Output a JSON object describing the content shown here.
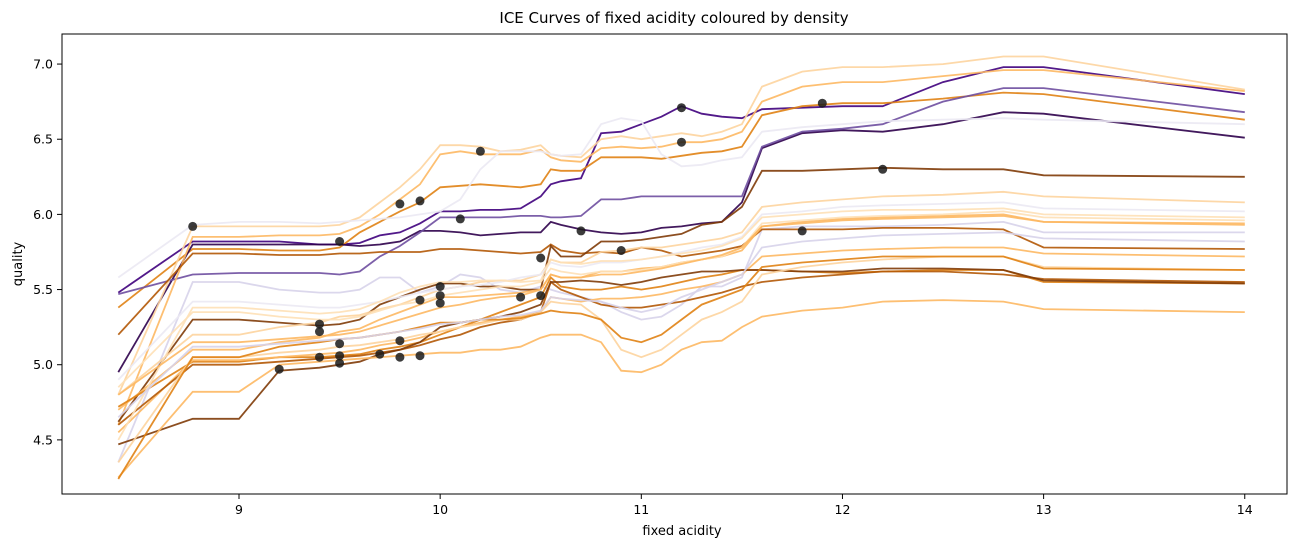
{
  "chart_data": {
    "type": "line",
    "title": "ICE Curves of fixed acidity coloured by density",
    "xlabel": "fixed acidity",
    "ylabel": "quality",
    "xlim": [
      8.12,
      14.21
    ],
    "ylim": [
      4.14,
      7.2
    ],
    "xticks": [
      "9",
      "10",
      "11",
      "12",
      "13",
      "14"
    ],
    "yticks": [
      "4.5",
      "5.0",
      "5.5",
      "6.0",
      "6.5",
      "7.0"
    ],
    "grid": false,
    "legend": "none",
    "x": [
      8.4,
      8.77,
      9.0,
      9.2,
      9.4,
      9.5,
      9.6,
      9.7,
      9.8,
      9.9,
      10.0,
      10.1,
      10.2,
      10.3,
      10.4,
      10.5,
      10.55,
      10.6,
      10.7,
      10.8,
      10.9,
      11.0,
      11.1,
      11.2,
      11.3,
      11.4,
      11.5,
      11.6,
      11.8,
      12.0,
      12.2,
      12.5,
      12.8,
      13.0,
      14.0
    ],
    "series": [
      {
        "color": "#d7d3ea",
        "values": [
          4.35,
          5.55,
          5.55,
          5.5,
          5.48,
          5.48,
          5.5,
          5.58,
          5.58,
          5.48,
          5.52,
          5.6,
          5.58,
          5.5,
          5.48,
          5.52,
          5.5,
          5.48,
          5.45,
          5.42,
          5.35,
          5.3,
          5.32,
          5.4,
          5.52,
          5.52,
          5.58,
          5.9,
          5.92,
          5.92,
          5.92,
          5.93,
          5.95,
          5.88,
          5.88
        ]
      },
      {
        "color": "#3f007d",
        "values": [
          5.48,
          5.82,
          5.82,
          5.82,
          5.8,
          5.8,
          5.81,
          5.86,
          5.88,
          5.94,
          6.02,
          6.02,
          6.03,
          6.03,
          6.04,
          6.12,
          6.2,
          6.22,
          6.24,
          6.54,
          6.55,
          6.6,
          6.65,
          6.72,
          6.67,
          6.65,
          6.64,
          6.7,
          6.71,
          6.72,
          6.72,
          6.88,
          6.98,
          6.98,
          6.8
        ]
      },
      {
        "color": "#e08214",
        "values": [
          5.38,
          5.77,
          5.77,
          5.76,
          5.76,
          5.78,
          5.88,
          5.95,
          6.02,
          6.08,
          6.18,
          6.19,
          6.2,
          6.19,
          6.18,
          6.2,
          6.3,
          6.29,
          6.29,
          6.38,
          6.38,
          6.38,
          6.37,
          6.39,
          6.41,
          6.42,
          6.45,
          6.66,
          6.72,
          6.74,
          6.74,
          6.77,
          6.81,
          6.8,
          6.63
        ]
      },
      {
        "color": "#2d004b",
        "values": [
          4.95,
          5.8,
          5.8,
          5.8,
          5.8,
          5.8,
          5.79,
          5.8,
          5.82,
          5.89,
          5.89,
          5.88,
          5.86,
          5.87,
          5.88,
          5.88,
          5.95,
          5.93,
          5.9,
          5.88,
          5.87,
          5.88,
          5.91,
          5.92,
          5.94,
          5.95,
          6.08,
          6.44,
          6.54,
          6.56,
          6.55,
          6.6,
          6.68,
          6.67,
          6.51
        ]
      },
      {
        "color": "#6e4ea0",
        "values": [
          5.47,
          5.6,
          5.61,
          5.61,
          5.61,
          5.6,
          5.62,
          5.72,
          5.79,
          5.88,
          5.98,
          5.98,
          5.98,
          5.98,
          5.99,
          5.99,
          5.98,
          5.98,
          5.99,
          6.1,
          6.1,
          6.12,
          6.12,
          6.12,
          6.12,
          6.12,
          6.12,
          6.45,
          6.55,
          6.57,
          6.6,
          6.75,
          6.84,
          6.84,
          6.68
        ]
      },
      {
        "color": "#fdd49e",
        "values": [
          4.8,
          5.92,
          5.92,
          5.92,
          5.92,
          5.93,
          5.98,
          6.08,
          6.18,
          6.3,
          6.46,
          6.46,
          6.45,
          6.42,
          6.43,
          6.46,
          6.4,
          6.39,
          6.38,
          6.5,
          6.52,
          6.5,
          6.52,
          6.54,
          6.52,
          6.55,
          6.6,
          6.85,
          6.95,
          6.98,
          6.98,
          7.0,
          7.05,
          7.05,
          6.83
        ]
      },
      {
        "color": "#fdb863",
        "values": [
          4.6,
          5.85,
          5.85,
          5.86,
          5.86,
          5.87,
          5.92,
          6.0,
          6.1,
          6.2,
          6.4,
          6.42,
          6.4,
          6.4,
          6.4,
          6.43,
          6.38,
          6.36,
          6.35,
          6.44,
          6.45,
          6.44,
          6.45,
          6.48,
          6.48,
          6.5,
          6.55,
          6.75,
          6.85,
          6.88,
          6.88,
          6.92,
          6.96,
          6.96,
          6.82
        ]
      },
      {
        "color": "#ebe9f3",
        "values": [
          5.58,
          5.93,
          5.95,
          5.95,
          5.94,
          5.95,
          5.96,
          5.97,
          5.98,
          6.0,
          6.02,
          6.1,
          6.3,
          6.42,
          6.42,
          6.42,
          6.4,
          6.39,
          6.4,
          6.6,
          6.64,
          6.62,
          6.4,
          6.32,
          6.33,
          6.36,
          6.38,
          6.55,
          6.58,
          6.6,
          6.62,
          6.63,
          6.64,
          6.63,
          6.6
        ]
      },
      {
        "color": "#b35806",
        "values": [
          5.2,
          5.74,
          5.74,
          5.73,
          5.73,
          5.74,
          5.74,
          5.75,
          5.75,
          5.75,
          5.77,
          5.77,
          5.76,
          5.75,
          5.74,
          5.75,
          5.8,
          5.76,
          5.74,
          5.75,
          5.74,
          5.78,
          5.76,
          5.72,
          5.74,
          5.76,
          5.79,
          5.9,
          5.9,
          5.9,
          5.91,
          5.91,
          5.9,
          5.78,
          5.77
        ]
      },
      {
        "color": "#7f3b08",
        "values": [
          4.62,
          5.3,
          5.3,
          5.28,
          5.26,
          5.27,
          5.3,
          5.4,
          5.45,
          5.5,
          5.54,
          5.54,
          5.52,
          5.52,
          5.5,
          5.5,
          5.79,
          5.72,
          5.72,
          5.82,
          5.82,
          5.83,
          5.85,
          5.87,
          5.93,
          5.95,
          6.05,
          6.29,
          6.29,
          6.3,
          6.31,
          6.3,
          6.3,
          6.26,
          6.25
        ]
      },
      {
        "color": "#fdd49e",
        "values": [
          4.8,
          5.2,
          5.2,
          5.25,
          5.28,
          5.32,
          5.33,
          5.37,
          5.4,
          5.45,
          5.5,
          5.52,
          5.55,
          5.56,
          5.56,
          5.6,
          5.7,
          5.68,
          5.68,
          5.75,
          5.76,
          5.78,
          5.78,
          5.8,
          5.82,
          5.84,
          5.88,
          6.05,
          6.08,
          6.1,
          6.12,
          6.13,
          6.15,
          6.12,
          6.08
        ]
      },
      {
        "color": "#fdb863",
        "values": [
          4.7,
          5.1,
          5.1,
          5.15,
          5.18,
          5.22,
          5.24,
          5.3,
          5.35,
          5.4,
          5.45,
          5.45,
          5.46,
          5.47,
          5.48,
          5.5,
          5.6,
          5.58,
          5.58,
          5.62,
          5.62,
          5.64,
          5.65,
          5.68,
          5.7,
          5.72,
          5.76,
          5.92,
          5.95,
          5.97,
          5.98,
          5.99,
          6.0,
          5.95,
          5.93
        ]
      },
      {
        "color": "#e08214",
        "values": [
          4.72,
          5.02,
          5.02,
          5.05,
          5.05,
          5.06,
          5.07,
          5.1,
          5.12,
          5.15,
          5.2,
          5.25,
          5.3,
          5.35,
          5.4,
          5.45,
          5.58,
          5.52,
          5.5,
          5.5,
          5.52,
          5.5,
          5.52,
          5.55,
          5.58,
          5.6,
          5.63,
          5.63,
          5.62,
          5.61,
          5.62,
          5.63,
          5.63,
          5.55,
          5.54
        ]
      },
      {
        "color": "#ebe9f3",
        "values": [
          4.9,
          5.42,
          5.42,
          5.4,
          5.38,
          5.38,
          5.4,
          5.42,
          5.45,
          5.48,
          5.5,
          5.52,
          5.53,
          5.55,
          5.58,
          5.6,
          5.68,
          5.66,
          5.65,
          5.68,
          5.68,
          5.7,
          5.72,
          5.75,
          5.78,
          5.8,
          5.85,
          6.0,
          6.02,
          6.05,
          6.06,
          6.07,
          6.08,
          6.04,
          6.02
        ]
      },
      {
        "color": "#fee0b6",
        "values": [
          4.85,
          5.35,
          5.35,
          5.32,
          5.3,
          5.3,
          5.32,
          5.36,
          5.4,
          5.42,
          5.46,
          5.48,
          5.5,
          5.52,
          5.52,
          5.55,
          5.64,
          5.62,
          5.6,
          5.62,
          5.62,
          5.63,
          5.65,
          5.68,
          5.7,
          5.72,
          5.78,
          5.94,
          5.96,
          5.98,
          5.99,
          6.0,
          6.02,
          5.98,
          5.96
        ]
      },
      {
        "color": "#fdb863",
        "values": [
          4.55,
          5.03,
          5.03,
          5.05,
          5.07,
          5.08,
          5.1,
          5.13,
          5.15,
          5.18,
          5.22,
          5.25,
          5.28,
          5.3,
          5.32,
          5.35,
          5.45,
          5.44,
          5.42,
          5.44,
          5.44,
          5.45,
          5.47,
          5.5,
          5.52,
          5.55,
          5.6,
          5.72,
          5.74,
          5.76,
          5.77,
          5.78,
          5.78,
          5.74,
          5.72
        ]
      },
      {
        "color": "#b35806",
        "values": [
          4.6,
          5.0,
          5.0,
          5.02,
          5.04,
          5.05,
          5.06,
          5.08,
          5.1,
          5.13,
          5.17,
          5.2,
          5.25,
          5.28,
          5.3,
          5.35,
          5.55,
          5.5,
          5.45,
          5.4,
          5.38,
          5.38,
          5.4,
          5.42,
          5.45,
          5.48,
          5.52,
          5.55,
          5.58,
          5.6,
          5.62,
          5.62,
          5.6,
          5.57,
          5.55
        ]
      },
      {
        "color": "#7f3b08",
        "values": [
          4.47,
          4.64,
          4.64,
          4.96,
          4.98,
          5.0,
          5.02,
          5.07,
          5.1,
          5.15,
          5.25,
          5.28,
          5.3,
          5.32,
          5.35,
          5.4,
          5.55,
          5.55,
          5.56,
          5.55,
          5.53,
          5.55,
          5.58,
          5.6,
          5.62,
          5.62,
          5.63,
          5.63,
          5.62,
          5.62,
          5.64,
          5.64,
          5.63,
          5.56,
          5.54
        ]
      },
      {
        "color": "#fdb863",
        "values": [
          4.25,
          4.82,
          4.82,
          5.0,
          5.02,
          5.03,
          5.04,
          5.05,
          5.06,
          5.07,
          5.08,
          5.08,
          5.1,
          5.1,
          5.12,
          5.18,
          5.2,
          5.2,
          5.2,
          5.15,
          4.96,
          4.95,
          5.0,
          5.1,
          5.15,
          5.16,
          5.25,
          5.32,
          5.36,
          5.38,
          5.42,
          5.43,
          5.42,
          5.37,
          5.35
        ]
      },
      {
        "color": "#fdd49e",
        "values": [
          4.35,
          5.05,
          5.05,
          5.08,
          5.1,
          5.12,
          5.13,
          5.15,
          5.17,
          5.2,
          5.22,
          5.25,
          5.27,
          5.3,
          5.3,
          5.35,
          5.42,
          5.41,
          5.4,
          5.3,
          5.1,
          5.05,
          5.1,
          5.2,
          5.3,
          5.35,
          5.42,
          5.6,
          5.65,
          5.68,
          5.7,
          5.72,
          5.72,
          5.65,
          5.63
        ]
      },
      {
        "color": "#e08214",
        "values": [
          4.24,
          5.05,
          5.05,
          5.12,
          5.15,
          5.17,
          5.18,
          5.2,
          5.22,
          5.25,
          5.28,
          5.28,
          5.3,
          5.3,
          5.31,
          5.34,
          5.36,
          5.35,
          5.34,
          5.3,
          5.18,
          5.15,
          5.2,
          5.3,
          5.4,
          5.45,
          5.5,
          5.65,
          5.68,
          5.7,
          5.72,
          5.72,
          5.72,
          5.64,
          5.63
        ]
      },
      {
        "color": "#fee0b6",
        "values": [
          4.5,
          5.38,
          5.38,
          5.36,
          5.34,
          5.35,
          5.37,
          5.42,
          5.48,
          5.52,
          5.55,
          5.55,
          5.56,
          5.56,
          5.55,
          5.56,
          5.7,
          5.68,
          5.67,
          5.69,
          5.69,
          5.7,
          5.72,
          5.74,
          5.76,
          5.79,
          5.84,
          5.98,
          6.0,
          6.02,
          6.03,
          6.03,
          6.04,
          6.0,
          5.98
        ]
      },
      {
        "color": "#d7d3ea",
        "values": [
          4.65,
          5.12,
          5.12,
          5.14,
          5.16,
          5.17,
          5.18,
          5.2,
          5.22,
          5.24,
          5.27,
          5.28,
          5.3,
          5.32,
          5.33,
          5.36,
          5.45,
          5.44,
          5.43,
          5.42,
          5.38,
          5.35,
          5.38,
          5.45,
          5.5,
          5.55,
          5.6,
          5.78,
          5.82,
          5.84,
          5.86,
          5.87,
          5.88,
          5.84,
          5.82
        ]
      },
      {
        "color": "#fdb863",
        "values": [
          4.8,
          5.15,
          5.15,
          5.17,
          5.19,
          5.2,
          5.22,
          5.26,
          5.3,
          5.34,
          5.38,
          5.4,
          5.43,
          5.45,
          5.46,
          5.5,
          5.6,
          5.58,
          5.58,
          5.6,
          5.6,
          5.62,
          5.64,
          5.67,
          5.7,
          5.73,
          5.78,
          5.92,
          5.94,
          5.96,
          5.97,
          5.98,
          5.99,
          5.95,
          5.94
        ]
      }
    ],
    "points": [
      {
        "x": 8.77,
        "y": 5.92
      },
      {
        "x": 9.2,
        "y": 4.97
      },
      {
        "x": 9.4,
        "y": 5.27
      },
      {
        "x": 9.4,
        "y": 5.22
      },
      {
        "x": 9.4,
        "y": 5.05
      },
      {
        "x": 9.5,
        "y": 5.82
      },
      {
        "x": 9.5,
        "y": 5.14
      },
      {
        "x": 9.5,
        "y": 5.06
      },
      {
        "x": 9.5,
        "y": 5.01
      },
      {
        "x": 9.7,
        "y": 5.07
      },
      {
        "x": 9.8,
        "y": 6.07
      },
      {
        "x": 9.8,
        "y": 5.16
      },
      {
        "x": 9.8,
        "y": 5.05
      },
      {
        "x": 9.9,
        "y": 6.09
      },
      {
        "x": 9.9,
        "y": 5.43
      },
      {
        "x": 9.9,
        "y": 5.06
      },
      {
        "x": 10.0,
        "y": 5.52
      },
      {
        "x": 10.0,
        "y": 5.46
      },
      {
        "x": 10.0,
        "y": 5.41
      },
      {
        "x": 10.1,
        "y": 5.97
      },
      {
        "x": 10.2,
        "y": 6.42
      },
      {
        "x": 10.4,
        "y": 5.45
      },
      {
        "x": 10.5,
        "y": 5.71
      },
      {
        "x": 10.5,
        "y": 5.46
      },
      {
        "x": 10.7,
        "y": 5.89
      },
      {
        "x": 10.9,
        "y": 5.76
      },
      {
        "x": 11.2,
        "y": 6.71
      },
      {
        "x": 11.2,
        "y": 6.48
      },
      {
        "x": 11.8,
        "y": 5.89
      },
      {
        "x": 11.9,
        "y": 6.74
      },
      {
        "x": 12.2,
        "y": 6.3
      }
    ],
    "point_color": "#1a1a1a"
  }
}
